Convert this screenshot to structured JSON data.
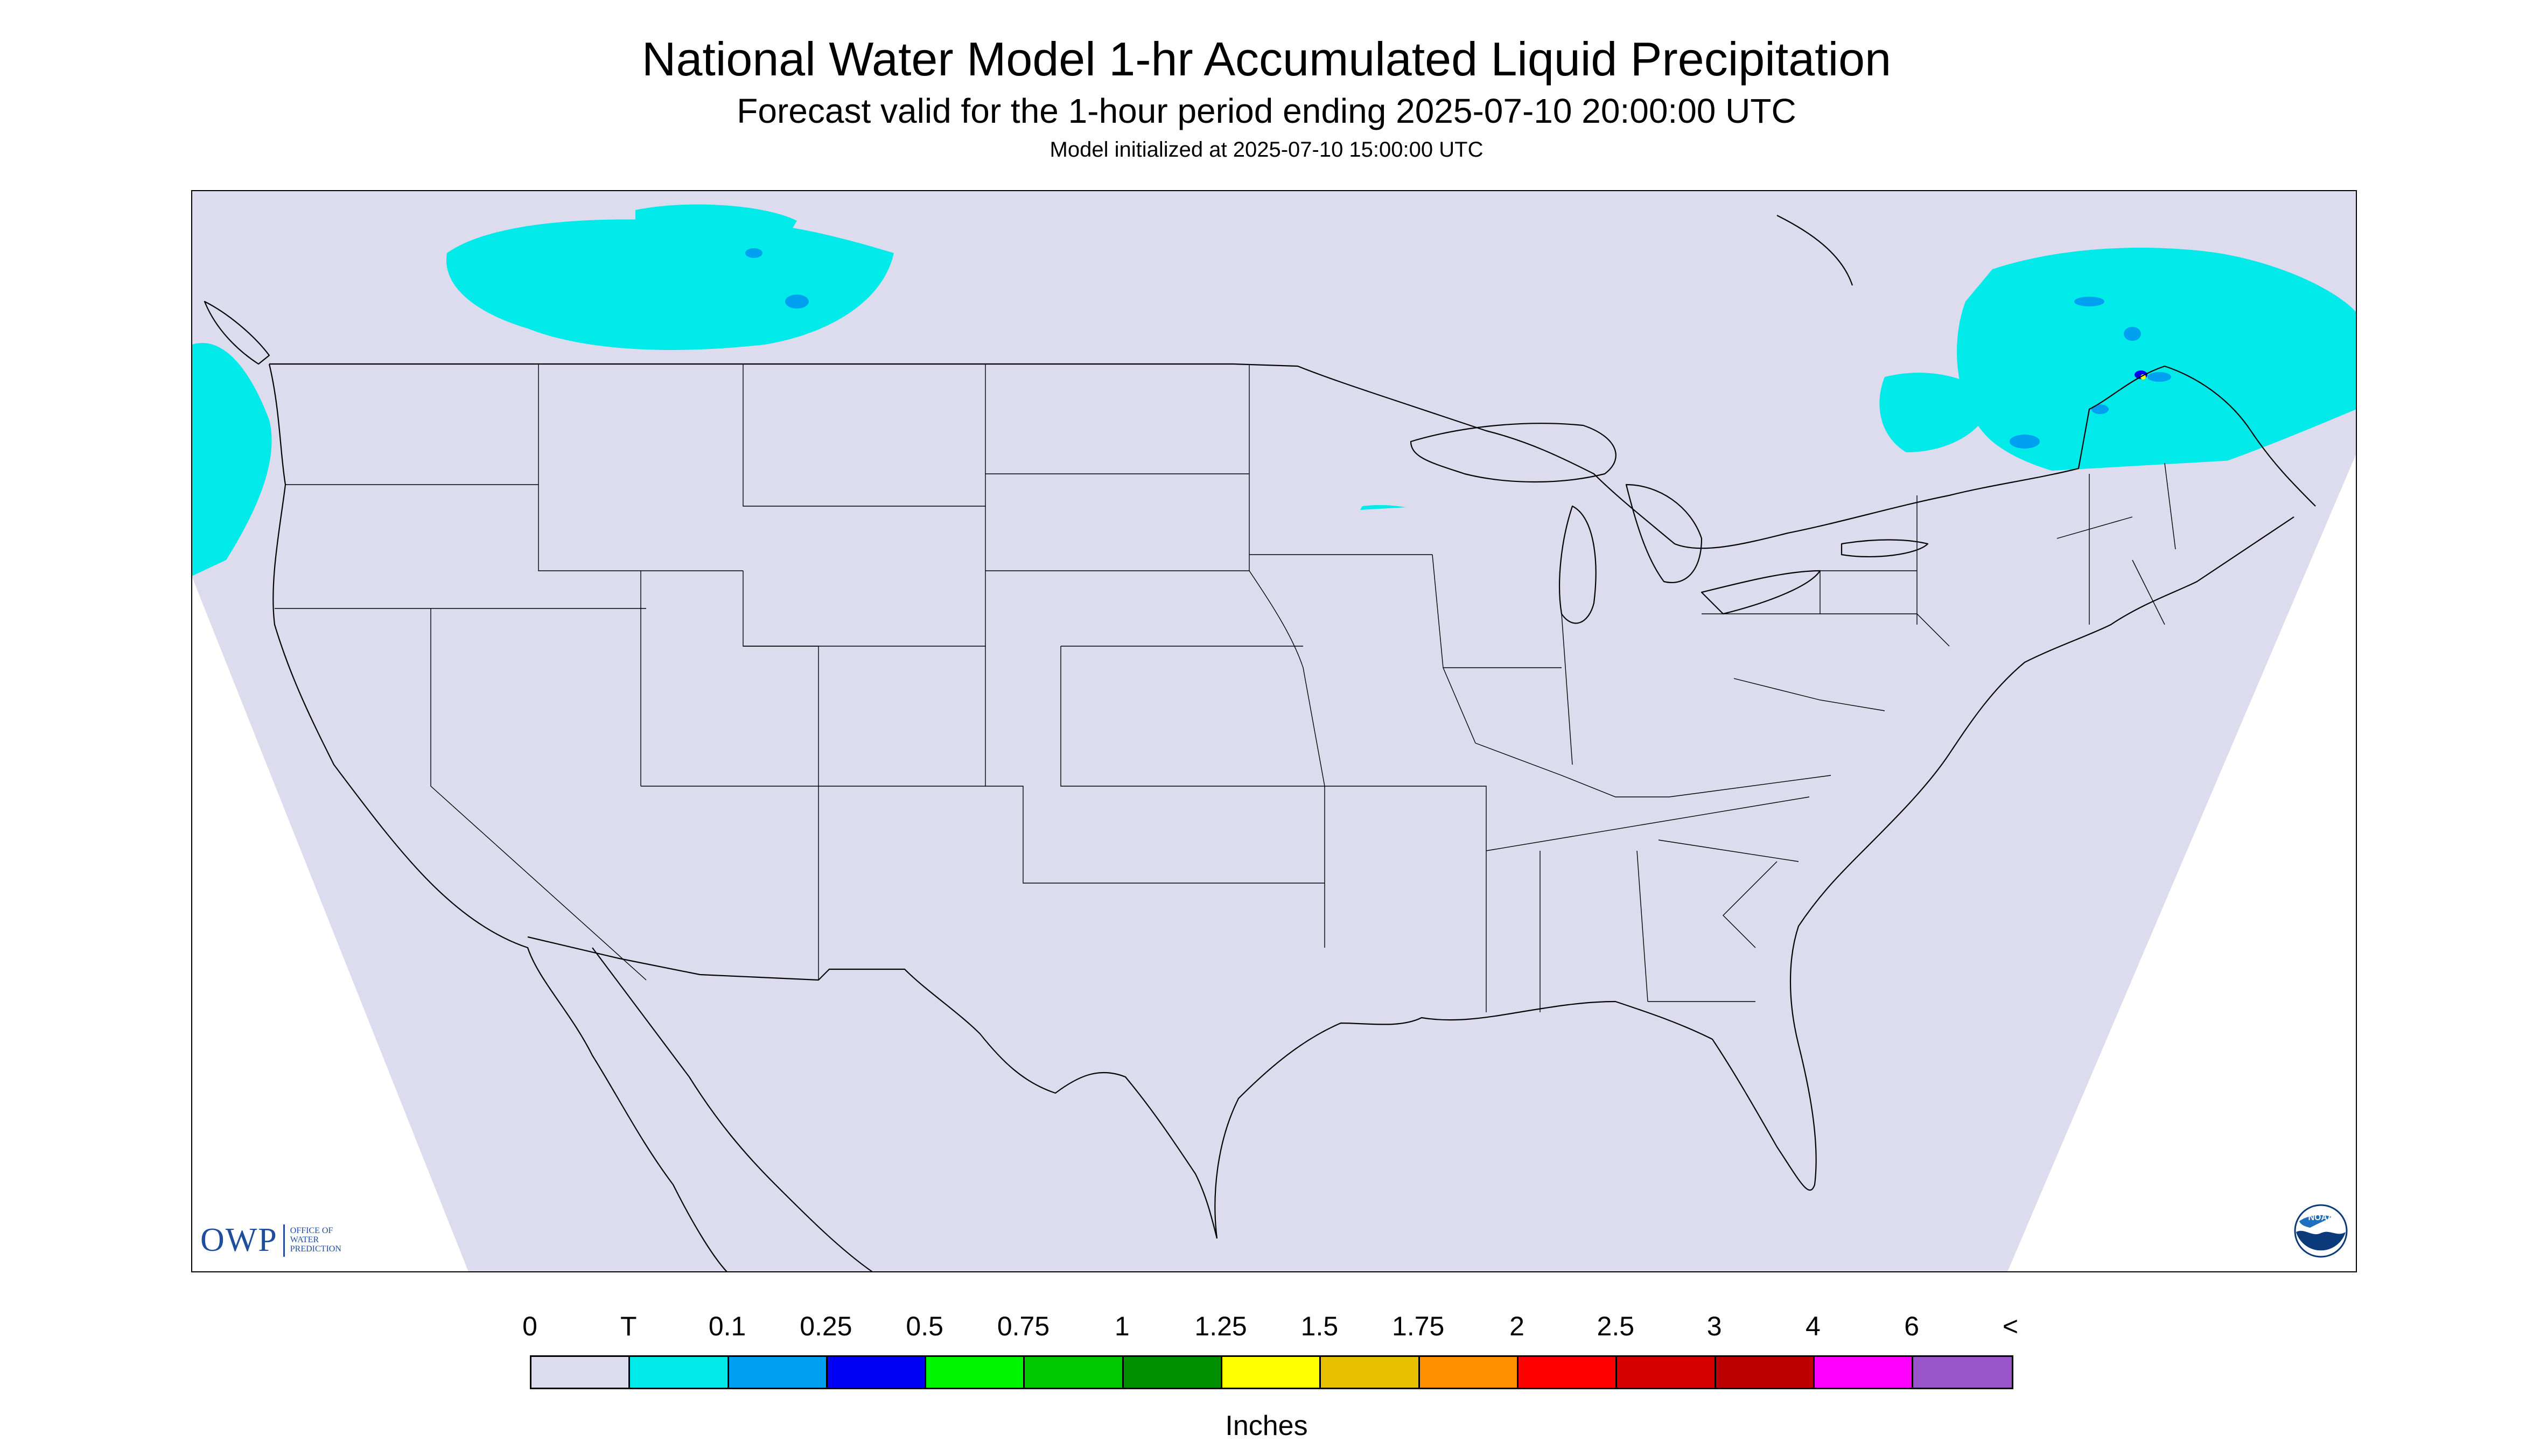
{
  "title": "National Water Model 1-hr Accumulated Liquid Precipitation",
  "subtitle": "Forecast valid for the 1-hour period ending 2025-07-10 20:00:00 UTC",
  "init_line": "Model initialized at 2025-07-10 15:00:00 UTC",
  "logo_owp": {
    "letters": "OWP",
    "org_lines": [
      "OFFICE OF",
      "WATER",
      "PREDICTION"
    ]
  },
  "logo_noaa": {
    "text": "NOAA"
  },
  "colorbar": {
    "tick_labels": [
      "0",
      "T",
      "0.1",
      "0.25",
      "0.5",
      "0.75",
      "1",
      "1.25",
      "1.5",
      "1.75",
      "2",
      "2.5",
      "3",
      "4",
      "6",
      "<"
    ],
    "colors": [
      "#dcdcee",
      "#00eaea",
      "#00a0f0",
      "#0000f5",
      "#00f500",
      "#00c800",
      "#009000",
      "#ffff00",
      "#e7c000",
      "#ff9000",
      "#ff0000",
      "#d60000",
      "#bc0000",
      "#ff00ff",
      "#9955c9"
    ],
    "units_label": "Inches"
  },
  "map": {
    "background_color": "#dcdcee",
    "light_color": "#00eaea",
    "medium_color": "#00a0f0",
    "heavy_color": "#0000f5",
    "green_color": "#00c800",
    "yellow_color": "#ffff00",
    "orange_color": "#ff9000"
  }
}
